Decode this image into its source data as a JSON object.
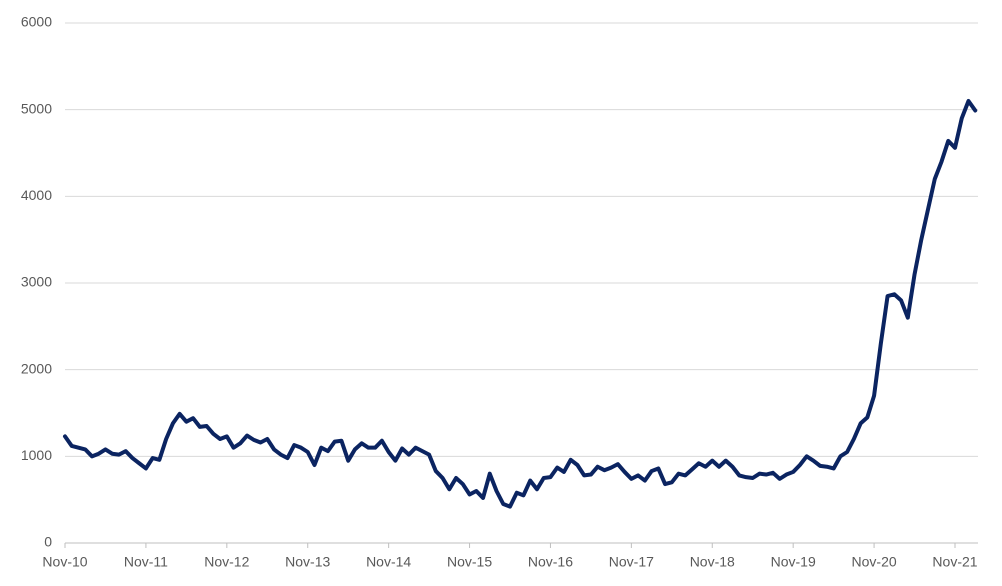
{
  "chart_data": {
    "type": "line",
    "categories": [
      "Nov-10",
      null,
      null,
      null,
      null,
      null,
      null,
      null,
      null,
      null,
      null,
      null,
      "Nov-11",
      null,
      null,
      null,
      null,
      null,
      null,
      null,
      null,
      null,
      null,
      null,
      "Nov-12",
      null,
      null,
      null,
      null,
      null,
      null,
      null,
      null,
      null,
      null,
      null,
      "Nov-13",
      null,
      null,
      null,
      null,
      null,
      null,
      null,
      null,
      null,
      null,
      null,
      "Nov-14",
      null,
      null,
      null,
      null,
      null,
      null,
      null,
      null,
      null,
      null,
      null,
      "Nov-15",
      null,
      null,
      null,
      null,
      null,
      null,
      null,
      null,
      null,
      null,
      null,
      "Nov-16",
      null,
      null,
      null,
      null,
      null,
      null,
      null,
      null,
      null,
      null,
      null,
      "Nov-17",
      null,
      null,
      null,
      null,
      null,
      null,
      null,
      null,
      null,
      null,
      null,
      "Nov-18",
      null,
      null,
      null,
      null,
      null,
      null,
      null,
      null,
      null,
      null,
      null,
      "Nov-19",
      null,
      null,
      null,
      null,
      null,
      null,
      null,
      null,
      null,
      null,
      null,
      "Nov-20",
      null,
      null,
      null,
      null,
      null,
      null,
      null,
      null,
      null,
      null,
      null,
      "Nov-21",
      null,
      null,
      null
    ],
    "series": [
      {
        "color": "#0b2461",
        "values": [
          1230,
          1120,
          1100,
          1080,
          1000,
          1030,
          1080,
          1030,
          1020,
          1060,
          980,
          920,
          860,
          980,
          960,
          1200,
          1380,
          1490,
          1400,
          1440,
          1340,
          1350,
          1260,
          1200,
          1230,
          1100,
          1150,
          1240,
          1190,
          1160,
          1200,
          1080,
          1020,
          980,
          1130,
          1100,
          1050,
          900,
          1100,
          1060,
          1170,
          1180,
          950,
          1080,
          1150,
          1100,
          1100,
          1180,
          1050,
          950,
          1090,
          1020,
          1100,
          1060,
          1020,
          830,
          750,
          620,
          750,
          680,
          560,
          600,
          520,
          800,
          600,
          450,
          420,
          580,
          550,
          720,
          620,
          750,
          760,
          870,
          820,
          960,
          900,
          780,
          790,
          880,
          840,
          870,
          910,
          820,
          740,
          780,
          720,
          830,
          860,
          680,
          700,
          800,
          780,
          850,
          920,
          880,
          950,
          880,
          950,
          880,
          780,
          760,
          750,
          800,
          790,
          810,
          740,
          790,
          820,
          900,
          1000,
          950,
          890,
          880,
          860,
          1000,
          1050,
          1200,
          1380,
          1450,
          1700,
          2300,
          2850,
          2870,
          2800,
          2600,
          3100,
          3500,
          3850,
          4200,
          4400,
          4640,
          4560,
          4900,
          5100,
          4990
        ]
      }
    ],
    "ylim": [
      0,
      6000
    ],
    "yticks": [
      0,
      1000,
      2000,
      3000,
      4000,
      5000,
      6000
    ],
    "grid": true
  }
}
